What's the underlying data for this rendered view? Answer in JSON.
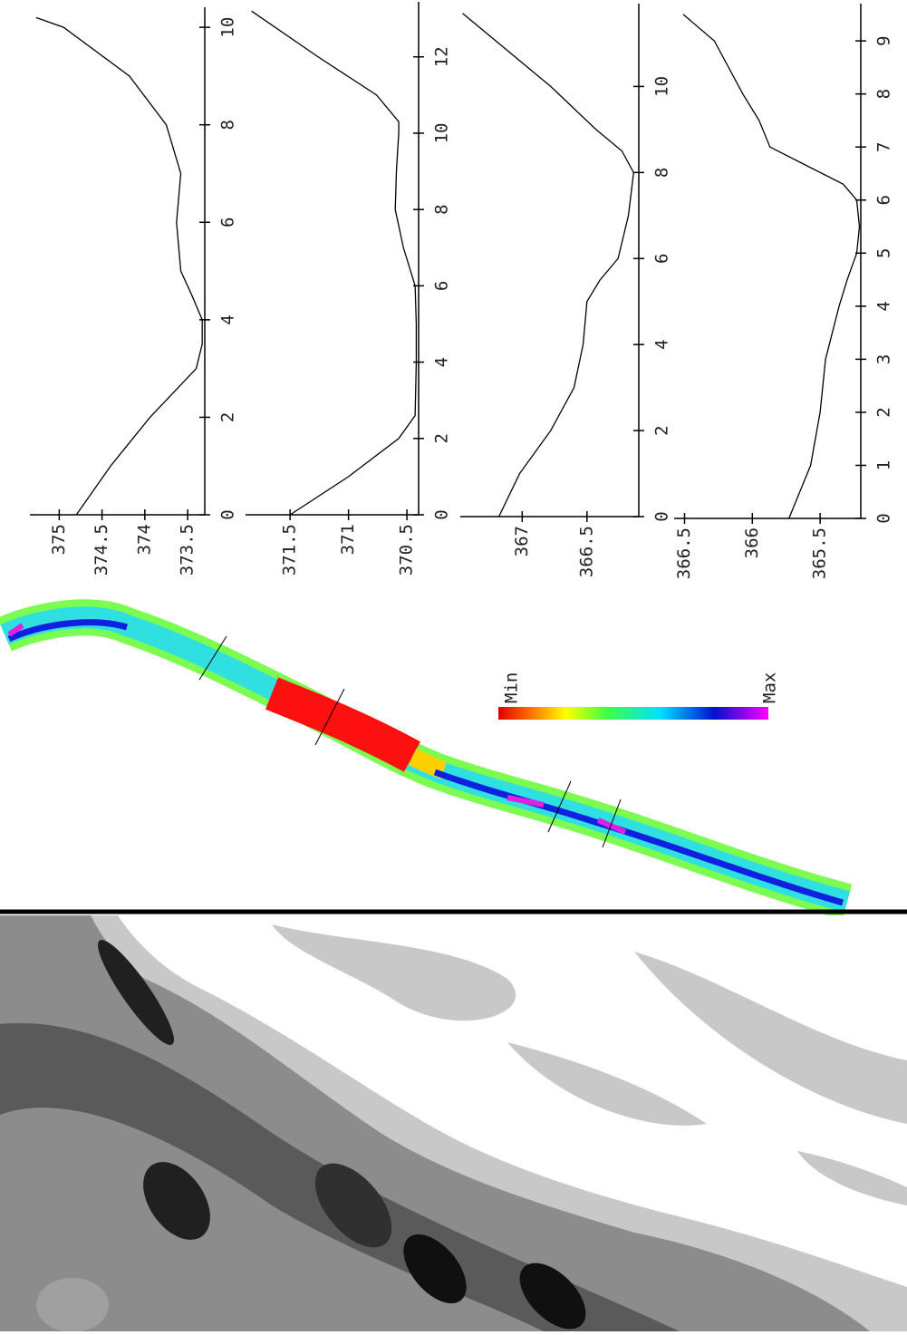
{
  "chart_data": [
    {
      "type": "line",
      "x": [
        0,
        1,
        2,
        3,
        3.5,
        4,
        4.5,
        5,
        6,
        7,
        8,
        9,
        10,
        10.2
      ],
      "values": [
        374.8,
        374.4,
        373.94,
        373.4,
        373.33,
        373.33,
        373.45,
        373.58,
        373.63,
        373.58,
        373.75,
        374.18,
        374.95,
        375.27
      ],
      "color": "#000000",
      "xlim": [
        0,
        10.3
      ],
      "ylim": [
        373.3,
        375.3
      ],
      "xticks": [
        0,
        2,
        4,
        6,
        8,
        10
      ],
      "yticks": [
        373.5,
        374,
        374.5,
        375
      ]
    },
    {
      "type": "line",
      "x": [
        0,
        1,
        2,
        2.6,
        4,
        5,
        6,
        7,
        8,
        9,
        10,
        10.3,
        11,
        12,
        13.2
      ],
      "values": [
        371.5,
        371.0,
        370.57,
        370.43,
        370.42,
        370.42,
        370.43,
        370.53,
        370.6,
        370.59,
        370.57,
        370.57,
        370.76,
        371.26,
        371.83
      ],
      "color": "#000000",
      "xlim": [
        0,
        13.3
      ],
      "ylim": [
        370.4,
        371.85
      ],
      "xticks": [
        0,
        2,
        4,
        6,
        8,
        10,
        12
      ],
      "yticks": [
        370.5,
        371,
        371.5
      ]
    },
    {
      "type": "line",
      "x": [
        0,
        1,
        2,
        3,
        4,
        5,
        5.5,
        6,
        7,
        8,
        8.5,
        9,
        10,
        11.7
      ],
      "values": [
        367.18,
        367.02,
        366.78,
        366.6,
        366.53,
        366.5,
        366.4,
        366.26,
        366.18,
        366.14,
        366.23,
        366.43,
        366.78,
        367.46
      ],
      "color": "#000000",
      "xlim": [
        0,
        11.8
      ],
      "ylim": [
        366.1,
        367.45
      ],
      "xticks": [
        0,
        2,
        4,
        6,
        8,
        10
      ],
      "yticks": [
        366.5,
        367
      ]
    },
    {
      "type": "line",
      "x": [
        0,
        1,
        2,
        3,
        4,
        4.5,
        5,
        5.5,
        6,
        6.3,
        7,
        7.5,
        8,
        9,
        9.5
      ],
      "values": [
        365.73,
        365.57,
        365.5,
        365.46,
        365.36,
        365.3,
        365.23,
        365.21,
        365.23,
        365.33,
        365.87,
        365.95,
        366.07,
        366.28,
        366.51
      ],
      "color": "#000000",
      "xlim": [
        0,
        9.6
      ],
      "ylim": [
        365.2,
        366.55
      ],
      "xticks": [
        0,
        1,
        2,
        3,
        4,
        5,
        6,
        7,
        8,
        9
      ],
      "yticks": [
        365.5,
        366,
        366.5
      ]
    }
  ],
  "colorbar": {
    "min": "Min",
    "max": "Max"
  }
}
